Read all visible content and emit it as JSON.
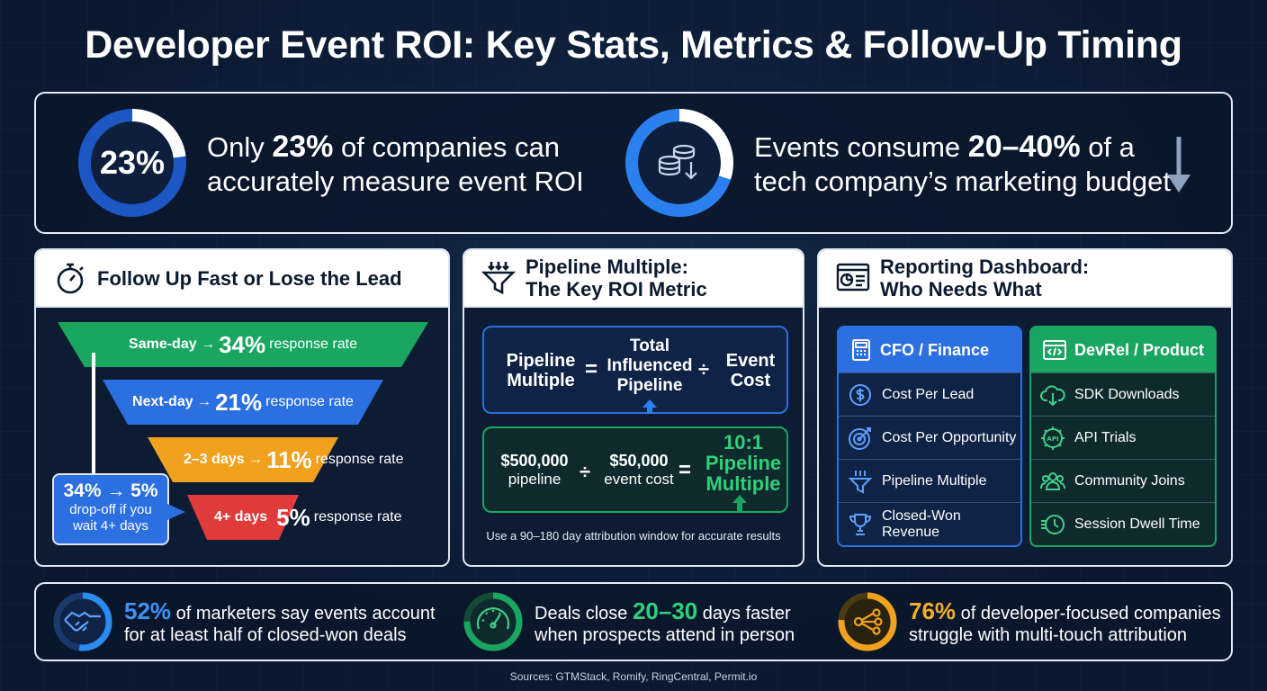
{
  "title": "Developer Event ROI: Key Stats, Metrics & Follow-Up Timing",
  "top_stats": {
    "left": {
      "ring_label": "23%",
      "ring_fraction": 0.23,
      "pre": "Only ",
      "highlight": "23%",
      "post_line1": " of companies can",
      "line2": "accurately measure event ROI",
      "icon": "percent-ring"
    },
    "right": {
      "ring_fraction": 0.3,
      "pre": "Events consume ",
      "highlight": "20–40%",
      "post_line1": " of a",
      "line2": "tech company’s marketing budget",
      "icon": "coins-down-icon",
      "arrow_icon": "arrow-down-icon"
    }
  },
  "followup": {
    "title": "Follow Up Fast or Lose the Lead",
    "icon": "stopwatch-icon",
    "bands": [
      {
        "label": "Same-day →",
        "pct": "34%",
        "suffix": "response rate",
        "color": "#1aa661"
      },
      {
        "label": "Next-day →",
        "pct": "21%",
        "suffix": "response rate",
        "color": "#2b6fe0"
      },
      {
        "label": "2–3 days →",
        "pct": "11%",
        "suffix": "response rate",
        "color": "#f0a11d"
      },
      {
        "label": "4+ days",
        "pct": "5%",
        "suffix": "response rate",
        "color": "#e03a3a"
      }
    ],
    "callout": {
      "headline": "34% → 5%",
      "line1": "drop-off if you",
      "line2": "wait 4+ days"
    }
  },
  "pipeline": {
    "title_line1": "Pipeline Multiple:",
    "title_line2": "The Key ROI Metric",
    "icon": "funnel-icon",
    "formula": {
      "lhs_line1": "Pipeline",
      "lhs_line2": "Multiple",
      "eq": "=",
      "num_line1": "Total",
      "num_line2": "Influenced",
      "num_line3": "Pipeline",
      "div": "÷",
      "den_line1": "Event",
      "den_line2": "Cost"
    },
    "example": {
      "a_value": "$500,000",
      "a_label": "pipeline",
      "div": "÷",
      "b_value": "$50,000",
      "b_label": "event cost",
      "eq": "=",
      "result_line1": "10:1",
      "result_line2": "Pipeline",
      "result_line3": "Multiple"
    },
    "note": "Use a 90–180 day attribution window for accurate results"
  },
  "dashboard": {
    "title_line1": "Reporting Dashboard:",
    "title_line2": "Who Needs What",
    "icon": "dashboard-icon",
    "cfo": {
      "title": "CFO / Finance",
      "icon": "calculator-icon",
      "color": "#2b6fe0",
      "items": [
        {
          "label": "Cost Per Lead",
          "icon": "dollar-icon"
        },
        {
          "label": "Cost Per Opportunity",
          "icon": "target-icon"
        },
        {
          "label": "Pipeline Multiple",
          "icon": "funnel-icon"
        },
        {
          "label": "Closed-Won Revenue",
          "icon": "trophy-icon"
        }
      ]
    },
    "devrel": {
      "title": "DevRel / Product",
      "icon": "code-window-icon",
      "color": "#1aa661",
      "items": [
        {
          "label": "SDK Downloads",
          "icon": "cloud-download-icon"
        },
        {
          "label": "API Trials",
          "icon": "api-gear-icon"
        },
        {
          "label": "Community Joins",
          "icon": "people-icon"
        },
        {
          "label": "Session Dwell Time",
          "icon": "clock-icon"
        }
      ]
    }
  },
  "bottom_stats": [
    {
      "highlight": "52%",
      "rest_line1": " of marketers say events account",
      "line2": "for at least half of closed-won deals",
      "icon": "handshake-icon",
      "color": "#2b8cf0",
      "ring_fraction": 0.52
    },
    {
      "pre": "Deals close ",
      "highlight": "20–30",
      "rest_line1": " days faster",
      "line2": "when prospects attend in person",
      "icon": "speedometer-icon",
      "color": "#1aa661",
      "ring_fraction": 0.75
    },
    {
      "highlight": "76%",
      "rest_line1": " of developer-focused companies",
      "line2": "struggle with multi-touch attribution",
      "icon": "share-nodes-icon",
      "color": "#f0a11d",
      "ring_fraction": 0.76
    }
  ],
  "sources": "Sources: GTMStack, Romify, RingCentral, Permit.io"
}
